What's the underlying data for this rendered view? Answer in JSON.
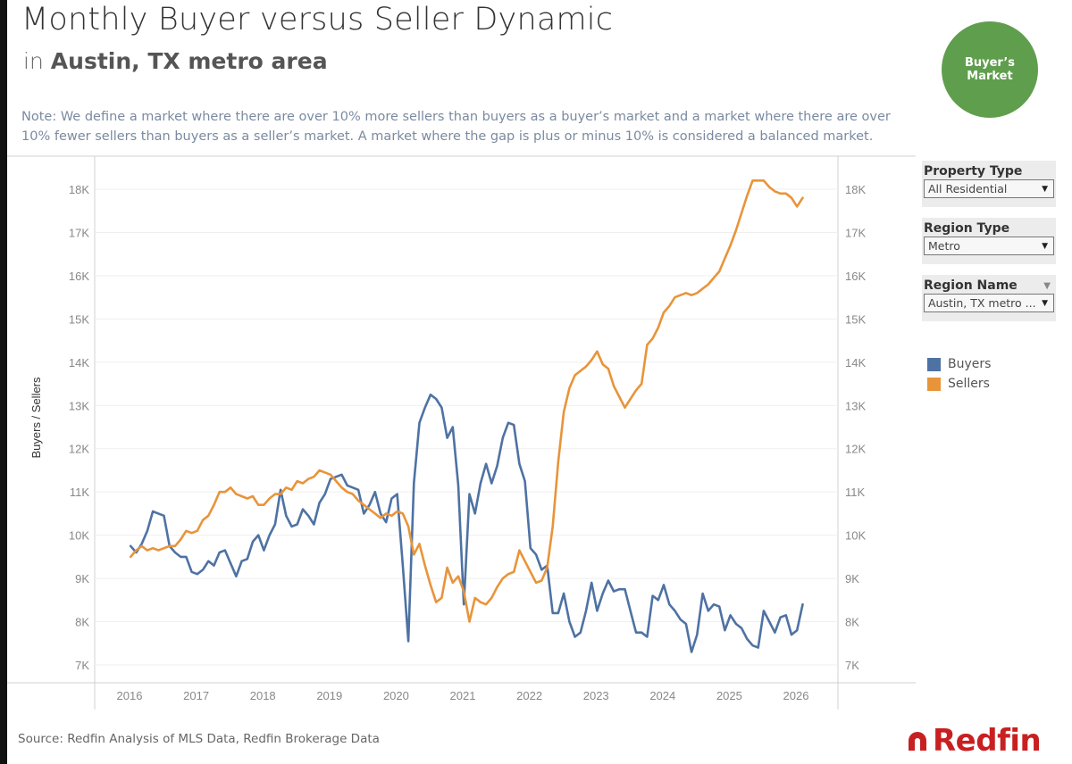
{
  "header": {
    "title": "Monthly Buyer versus Seller Dynamic",
    "subtitle_prefix": "in",
    "subtitle_location": "Austin, TX metro area"
  },
  "badge": {
    "label": "Buyer’s Market",
    "color": "#5f9e4d"
  },
  "note": "Note: We define a market where there are over 10% more sellers than buyers as a buyer’s market and a market where there are over 10% fewer sellers than buyers as a seller’s market. A market where the gap is plus or minus 10% is considered a balanced market.",
  "filters": [
    {
      "label": "Property Type",
      "value": "All Residential",
      "has_header_menu": false
    },
    {
      "label": "Region Type",
      "value": "Metro",
      "has_header_menu": false
    },
    {
      "label": "Region Name",
      "value": "Austin, TX metro ...",
      "has_header_menu": true
    }
  ],
  "legend": [
    {
      "name": "Buyers",
      "color": "#4e72a3"
    },
    {
      "name": "Sellers",
      "color": "#e8943a"
    }
  ],
  "footer": {
    "source": "Source: Redfin Analysis of MLS Data, Redfin Brokerage Data",
    "logo_text": "Redfin",
    "logo_color": "#c82021"
  },
  "chart_data": {
    "type": "line",
    "title": "Monthly Buyer versus Seller Dynamic",
    "xlabel": "",
    "ylabel": "Buyers / Sellers",
    "ylim": [
      7000,
      18000
    ],
    "y_ticks": [
      7000,
      8000,
      9000,
      10000,
      11000,
      12000,
      13000,
      14000,
      15000,
      16000,
      17000,
      18000
    ],
    "y_tick_labels": [
      "7K",
      "8K",
      "9K",
      "10K",
      "11K",
      "12K",
      "13K",
      "14K",
      "15K",
      "16K",
      "17K",
      "18K"
    ],
    "x_tick_labels": [
      "2016",
      "2017",
      "2018",
      "2019",
      "2020",
      "2021",
      "2022",
      "2023",
      "2024",
      "2025",
      "2026"
    ],
    "x_start": "2016-01",
    "x_end": "2026-02",
    "grid": true,
    "dual_axis": true,
    "legend_position": "right",
    "x_months_start": "2016-01",
    "series": [
      {
        "name": "Buyers",
        "color": "#4e72a3",
        "values": [
          9750,
          9600,
          9800,
          10100,
          10550,
          10500,
          10450,
          9750,
          9600,
          9500,
          9500,
          9150,
          9100,
          9200,
          9400,
          9300,
          9600,
          9650,
          9350,
          9050,
          9400,
          9450,
          9850,
          10000,
          9650,
          10000,
          10250,
          11050,
          10450,
          10200,
          10250,
          10600,
          10450,
          10250,
          10750,
          10950,
          11300,
          11350,
          11400,
          11150,
          11100,
          11050,
          10500,
          10700,
          11000,
          10500,
          10300,
          10850,
          10950,
          9300,
          7550,
          11200,
          12600,
          12950,
          13250,
          13150,
          12950,
          12250,
          12500,
          11150,
          8400,
          10950,
          10500,
          11200,
          11650,
          11200,
          11600,
          12250,
          12600,
          12550,
          11650,
          11250,
          9700,
          9550,
          9200,
          9300,
          8200,
          8200,
          8650,
          8000,
          7650,
          7750,
          8250,
          8900,
          8250,
          8650,
          8950,
          8700,
          8750,
          8750,
          8250,
          7750,
          7750,
          7650,
          8600,
          8500,
          8850,
          8400,
          8250,
          8050,
          7950,
          7300,
          7700,
          8650,
          8250,
          8400,
          8350,
          7800,
          8150,
          7950,
          7850,
          7600,
          7450,
          7400,
          8250,
          8000,
          7750,
          8100,
          8150,
          7700,
          7800,
          8400
        ]
      },
      {
        "name": "Sellers",
        "color": "#e8943a",
        "values": [
          9500,
          9650,
          9750,
          9650,
          9700,
          9650,
          9700,
          9750,
          9750,
          9900,
          10100,
          10050,
          10100,
          10350,
          10450,
          10700,
          11000,
          11000,
          11100,
          10950,
          10900,
          10850,
          10900,
          10700,
          10700,
          10850,
          10950,
          10950,
          11100,
          11050,
          11250,
          11200,
          11300,
          11350,
          11500,
          11450,
          11400,
          11250,
          11100,
          11000,
          10950,
          10800,
          10700,
          10600,
          10500,
          10400,
          10500,
          10450,
          10550,
          10500,
          10200,
          9550,
          9800,
          9300,
          8850,
          8450,
          8550,
          9250,
          8900,
          9050,
          8700,
          8000,
          8550,
          8450,
          8400,
          8550,
          8800,
          9000,
          9100,
          9150,
          9650,
          9400,
          9150,
          8900,
          8950,
          9250,
          10200,
          11700,
          12850,
          13400,
          13700,
          13800,
          13900,
          14050,
          14250,
          13950,
          13850,
          13450,
          13200,
          12950,
          13150,
          13350,
          13500,
          14400,
          14550,
          14800,
          15150,
          15300,
          15500,
          15550,
          15600,
          15550,
          15600,
          15700,
          15800,
          15950,
          16100,
          16400,
          16700,
          17050,
          17450,
          17850,
          18200,
          18200,
          18200,
          18050,
          17950,
          17900,
          17900,
          17800,
          17600,
          17800
        ]
      }
    ]
  }
}
